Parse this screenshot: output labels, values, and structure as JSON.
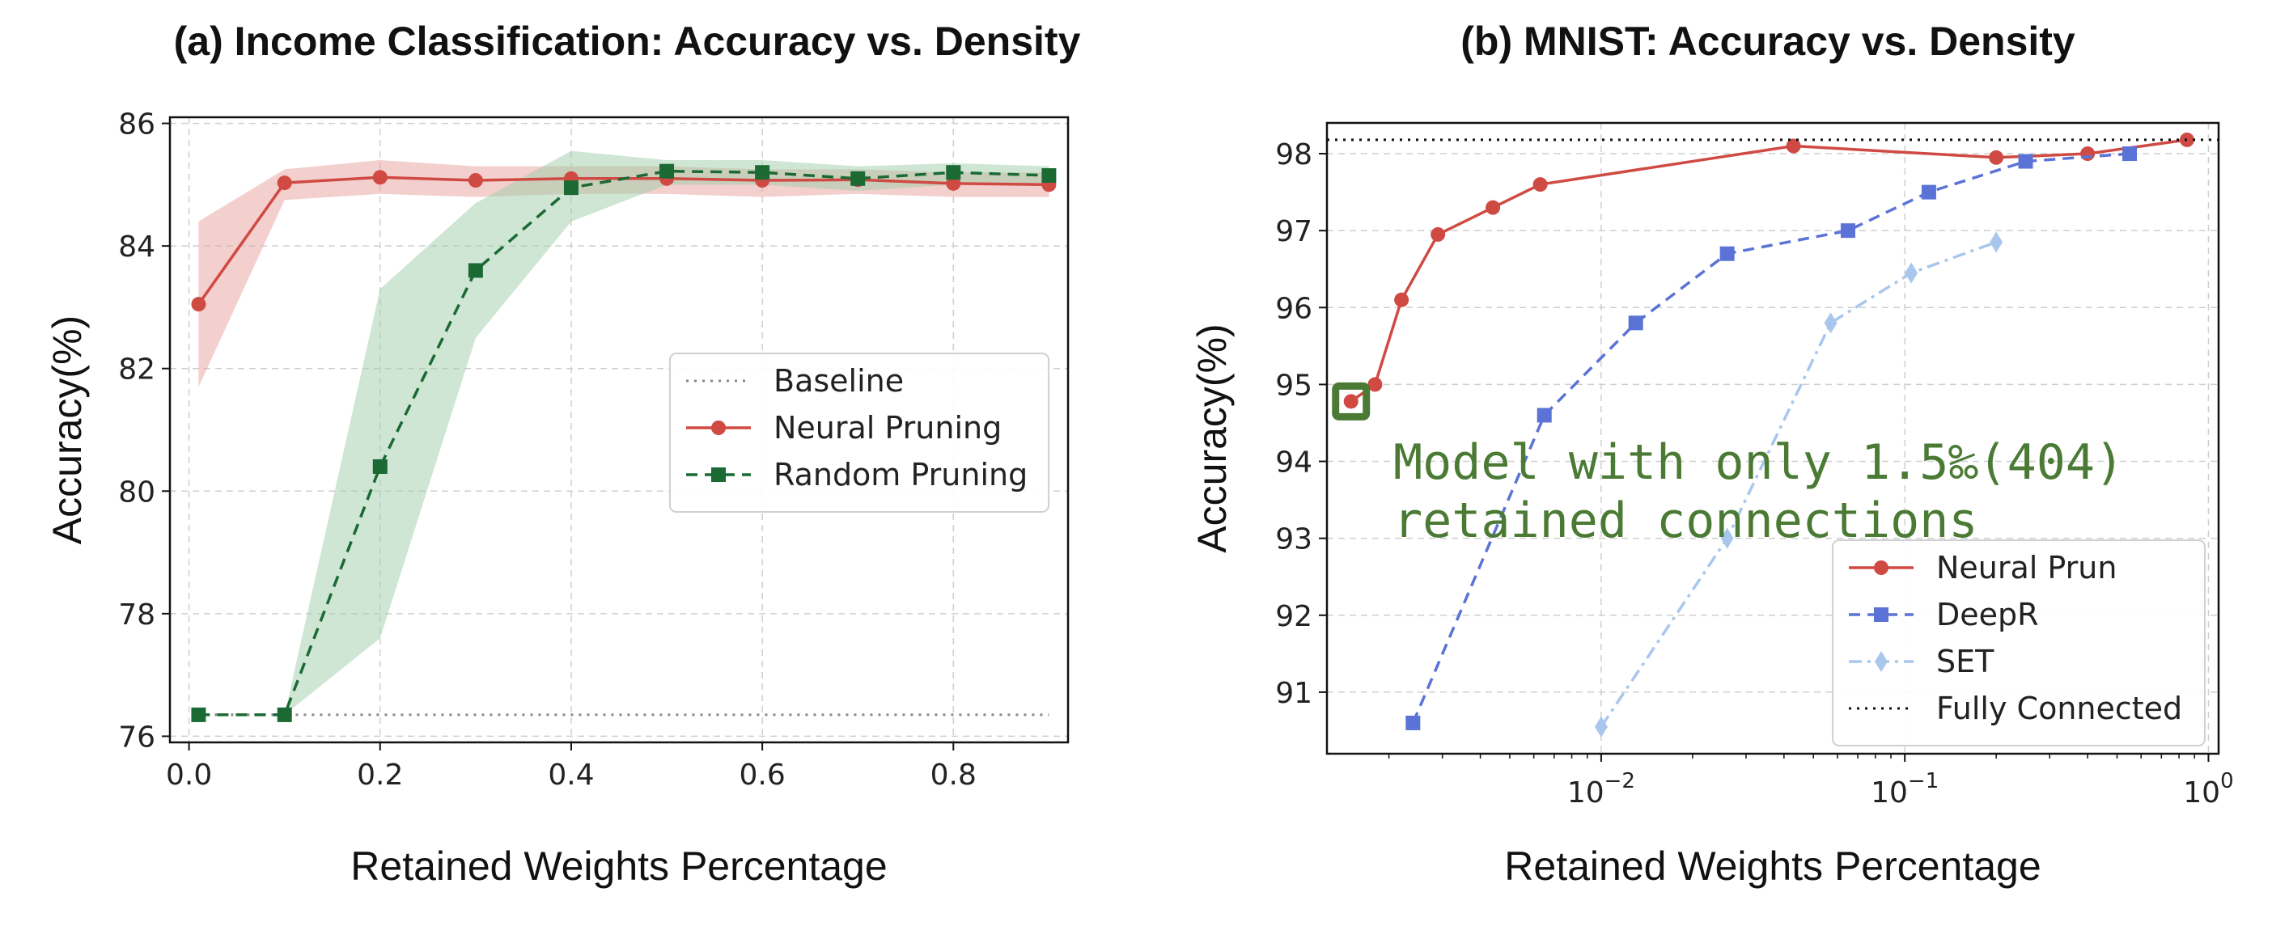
{
  "chart_data": [
    {
      "id": "a",
      "type": "line",
      "title": "(a) Income Classification: Accuracy vs. Density",
      "xlabel": "Retained Weights Percentage",
      "ylabel": "Accuracy(%)",
      "xscale": "linear",
      "xlim": [
        -0.02,
        0.92
      ],
      "ylim": [
        75.9,
        86.1
      ],
      "xticks": [
        0.0,
        0.2,
        0.4,
        0.6,
        0.8
      ],
      "xtick_labels": [
        "0.0",
        "0.2",
        "0.4",
        "0.6",
        "0.8"
      ],
      "yticks": [
        76,
        78,
        80,
        82,
        84,
        86
      ],
      "ytick_labels": [
        "76",
        "78",
        "80",
        "82",
        "84",
        "86"
      ],
      "grid": true,
      "legend_position": "center-right",
      "series": [
        {
          "name": "Baseline",
          "style": "dotted",
          "color": "#888888",
          "marker": "none",
          "x": [
            0.01,
            0.9
          ],
          "y": [
            76.35,
            76.35
          ]
        },
        {
          "name": "Neural Pruning",
          "style": "solid",
          "color": "#d04a44",
          "band_color": "#e8a09c",
          "marker": "circle",
          "x": [
            0.01,
            0.1,
            0.2,
            0.3,
            0.4,
            0.5,
            0.6,
            0.7,
            0.8,
            0.9
          ],
          "y": [
            83.05,
            85.03,
            85.12,
            85.07,
            85.1,
            85.1,
            85.07,
            85.08,
            85.02,
            85.0
          ],
          "lower": [
            81.7,
            84.75,
            84.85,
            84.8,
            84.85,
            84.85,
            84.8,
            84.85,
            84.8,
            84.8
          ],
          "upper": [
            84.4,
            85.25,
            85.4,
            85.3,
            85.3,
            85.3,
            85.25,
            85.25,
            85.2,
            85.2
          ]
        },
        {
          "name": "Random Pruning",
          "style": "dashed",
          "color": "#1b6a34",
          "band_color": "#9dcda7",
          "marker": "square",
          "x": [
            0.01,
            0.1,
            0.2,
            0.3,
            0.4,
            0.5,
            0.6,
            0.7,
            0.8,
            0.9
          ],
          "y": [
            76.35,
            76.35,
            80.4,
            83.6,
            84.95,
            85.22,
            85.2,
            85.1,
            85.2,
            85.15
          ],
          "lower": [
            76.35,
            76.35,
            77.6,
            82.5,
            84.4,
            85.0,
            85.0,
            84.9,
            85.0,
            85.0
          ],
          "upper": [
            76.35,
            76.35,
            83.3,
            84.7,
            85.55,
            85.4,
            85.4,
            85.3,
            85.35,
            85.3
          ]
        }
      ]
    },
    {
      "id": "b",
      "type": "line",
      "title": "(b) MNIST: Accuracy vs. Density",
      "xlabel": "Retained Weights Percentage",
      "ylabel": "Accuracy(%)",
      "xscale": "log",
      "xlim": [
        0.00125,
        1.08
      ],
      "ylim": [
        90.2,
        98.4
      ],
      "xticks": [
        0.01,
        0.1,
        1.0
      ],
      "xtick_labels": [
        {
          "base": "10",
          "exp": "−2"
        },
        {
          "base": "10",
          "exp": "−1"
        },
        {
          "base": "10",
          "exp": "0"
        }
      ],
      "yticks": [
        91,
        92,
        93,
        94,
        95,
        96,
        97,
        98
      ],
      "ytick_labels": [
        "91",
        "92",
        "93",
        "94",
        "95",
        "96",
        "97",
        "98"
      ],
      "grid": true,
      "legend_position": "lower-right",
      "annotation": {
        "lines": [
          "Model with only 1.5‰(404)",
          "retained connections"
        ],
        "x": 0.0015,
        "y": 94.78,
        "color": "#4a7a34"
      },
      "series": [
        {
          "name": "Neural Prun",
          "style": "solid",
          "color": "#d04a44",
          "marker": "circle",
          "x": [
            0.0015,
            0.0018,
            0.0022,
            0.0029,
            0.0044,
            0.0063,
            0.043,
            0.2,
            0.4,
            0.85
          ],
          "y": [
            94.78,
            95.0,
            96.1,
            96.95,
            97.3,
            97.6,
            98.1,
            97.95,
            98.0,
            98.18
          ]
        },
        {
          "name": "DeepR",
          "style": "dashed",
          "color": "#5b73d6",
          "marker": "square",
          "x": [
            0.0024,
            0.0065,
            0.013,
            0.026,
            0.065,
            0.12,
            0.25,
            0.55
          ],
          "y": [
            90.6,
            94.6,
            95.8,
            96.7,
            97.0,
            97.5,
            97.9,
            98.0
          ]
        },
        {
          "name": "SET",
          "style": "dashdot",
          "color": "#a9c7ec",
          "marker": "diamond",
          "x": [
            0.01,
            0.026,
            0.057,
            0.105,
            0.2
          ],
          "y": [
            90.55,
            93.0,
            95.8,
            96.45,
            96.85
          ]
        },
        {
          "name": "Fully Connected",
          "style": "dotted",
          "color": "#111111",
          "marker": "none",
          "x": [
            0.00125,
            1.08
          ],
          "y": [
            98.18,
            98.18
          ]
        }
      ]
    }
  ]
}
